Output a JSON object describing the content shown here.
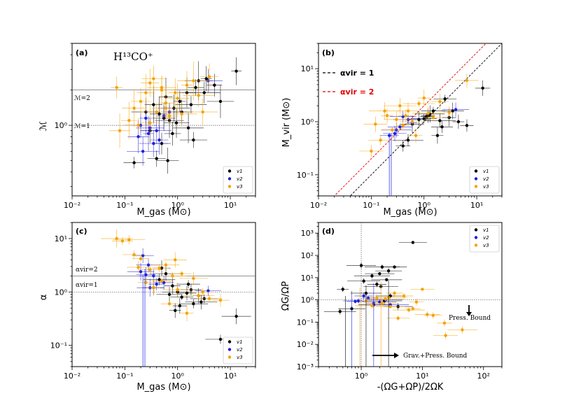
{
  "figure": {
    "species_label": "H¹³CO⁺"
  },
  "colors": {
    "v1": "#000000",
    "v2": "#1f1fe0",
    "v3": "#f5a200",
    "red": "#e00000",
    "guide": "#555555"
  },
  "chart_data": [
    {
      "id": "a",
      "type": "scatter",
      "panel_label": "(a)",
      "xlabel": "M_gas (M⊙)",
      "ylabel": "ℳ",
      "xscale": "log",
      "yscale": "log",
      "xlim": [
        0.01,
        30
      ],
      "ylim": [
        0.25,
        5
      ],
      "xticks": [
        {
          "v": 0.01,
          "label": "10⁻²"
        },
        {
          "v": 0.1,
          "label": "10⁻¹"
        },
        {
          "v": 1,
          "label": "10⁰"
        },
        {
          "v": 10,
          "label": "10¹"
        }
      ],
      "yticks": [
        {
          "v": 1,
          "label": "10⁰"
        }
      ],
      "hlines": [
        {
          "y": 2,
          "label": "ℳ=2"
        },
        {
          "y": 1,
          "label": "ℳ=1"
        }
      ],
      "legend": [
        "v1",
        "v2",
        "v3"
      ],
      "series": [
        {
          "name": "v1",
          "x": [
            13,
            5,
            3.5,
            1.5,
            2.2,
            1.1,
            0.85,
            0.6,
            0.45,
            1.8,
            2.5,
            0.7,
            1.2,
            0.35,
            0.55,
            0.95,
            3.2,
            6.5,
            0.25,
            1.6,
            0.8,
            2.0,
            0.5,
            0.65,
            0.15,
            0.4,
            0.3
          ],
          "y": [
            2.9,
            2.2,
            2.5,
            1.9,
            2.1,
            1.6,
            1.4,
            1.75,
            1.25,
            1.5,
            2.4,
            1.1,
            1.3,
            1.5,
            1.15,
            1.05,
            1.9,
            1.6,
            1.3,
            0.95,
            0.85,
            0.75,
            0.7,
            0.5,
            0.48,
            0.52,
            0.9
          ]
        },
        {
          "name": "v2",
          "x": [
            0.2,
            0.3,
            0.25,
            0.18,
            0.4,
            0.55,
            0.35,
            0.7,
            0.22,
            0.45,
            3.8,
            0.28
          ],
          "y": [
            1.0,
            0.95,
            1.15,
            0.8,
            0.9,
            1.2,
            0.7,
            1.3,
            0.6,
            0.75,
            2.4,
            0.85
          ]
        },
        {
          "name": "v3",
          "x": [
            0.07,
            0.15,
            0.2,
            0.3,
            0.5,
            0.9,
            1.5,
            2.5,
            0.12,
            0.08,
            0.4,
            0.6,
            1.0,
            2.0,
            1.2,
            0.25,
            0.35,
            3.0,
            4.0,
            0.18,
            0.7,
            0.5,
            0.3,
            0.6
          ],
          "y": [
            2.1,
            1.4,
            1.6,
            2.3,
            2.0,
            1.9,
            2.2,
            1.8,
            1.1,
            0.9,
            1.3,
            1.55,
            1.7,
            2.4,
            1.25,
            1.9,
            2.5,
            1.3,
            2.6,
            1.0,
            1.2,
            2.1,
            1.05,
            1.4
          ]
        }
      ]
    },
    {
      "id": "b",
      "type": "scatter",
      "panel_label": "(b)",
      "xlabel": "M_gas (M⊙)",
      "ylabel": "M_vir (M⊙)",
      "xscale": "log",
      "yscale": "log",
      "xlim": [
        0.01,
        30
      ],
      "ylim": [
        0.04,
        30
      ],
      "xticks": [
        {
          "v": 0.01,
          "label": "10⁻²"
        },
        {
          "v": 0.1,
          "label": "10⁻¹"
        },
        {
          "v": 1,
          "label": "10⁰"
        },
        {
          "v": 10,
          "label": "10¹"
        }
      ],
      "yticks": [
        {
          "v": 0.1,
          "label": "10⁻¹"
        },
        {
          "v": 1,
          "label": "10⁰"
        },
        {
          "v": 10,
          "label": "10¹"
        }
      ],
      "diagonals": [
        {
          "alpha": 1,
          "label": "αvir = 1",
          "color": "#000000"
        },
        {
          "alpha": 2,
          "label": "αvir = 2",
          "color": "#e00000"
        }
      ],
      "legend": [
        "v1",
        "v2",
        "v3"
      ],
      "series": [
        {
          "name": "v1",
          "x": [
            13,
            2.5,
            1.5,
            1.2,
            0.8,
            2.0,
            3.0,
            1.8,
            0.5,
            0.6,
            2.2,
            1.0,
            4.5,
            6.5,
            0.4,
            1.1,
            3.5,
            1.3
          ],
          "y": [
            4.3,
            2.7,
            1.6,
            1.3,
            1.1,
            1.05,
            1.2,
            0.55,
            0.45,
            0.9,
            0.8,
            1.15,
            1.0,
            0.85,
            0.35,
            1.25,
            1.6,
            1.4
          ]
        },
        {
          "name": "v2",
          "x": [
            0.22,
            0.28,
            0.35,
            0.5,
            0.6,
            4.0,
            0.4,
            0.3
          ],
          "y": [
            0.55,
            0.6,
            0.8,
            1.1,
            0.95,
            1.7,
            1.25,
            0.7
          ]
        },
        {
          "name": "v3",
          "x": [
            0.1,
            0.12,
            0.15,
            0.2,
            0.25,
            0.35,
            0.5,
            0.8,
            1.0,
            1.5,
            3.0,
            0.3,
            0.45,
            0.7,
            2.0,
            6.5,
            0.18,
            0.6,
            1.2,
            0.4
          ],
          "y": [
            0.28,
            0.9,
            0.45,
            1.3,
            0.7,
            2.0,
            1.6,
            2.2,
            2.8,
            1.2,
            1.5,
            1.1,
            1.3,
            0.55,
            2.4,
            6.0,
            1.6,
            1.0,
            1.45,
            0.85
          ]
        }
      ]
    },
    {
      "id": "c",
      "type": "scatter",
      "panel_label": "(c)",
      "xlabel": "M_gas (M⊙)",
      "ylabel": "α",
      "xscale": "log",
      "yscale": "log",
      "xlim": [
        0.01,
        30
      ],
      "ylim": [
        0.04,
        20
      ],
      "xticks": [
        {
          "v": 0.01,
          "label": "10⁻²"
        },
        {
          "v": 0.1,
          "label": "10⁻¹"
        },
        {
          "v": 1,
          "label": "10⁰"
        },
        {
          "v": 10,
          "label": "10¹"
        }
      ],
      "yticks": [
        {
          "v": 0.1,
          "label": "10⁻¹"
        },
        {
          "v": 1,
          "label": "10⁰"
        },
        {
          "v": 10,
          "label": "10¹"
        }
      ],
      "hlines": [
        {
          "y": 2,
          "label": "αvir=2"
        },
        {
          "y": 1,
          "label": "αvir=1"
        }
      ],
      "legend": [
        "v1",
        "v2",
        "v3"
      ],
      "series": [
        {
          "name": "v1",
          "x": [
            13,
            6.5,
            3.2,
            2.5,
            1.8,
            1.5,
            1.2,
            1.0,
            0.8,
            0.6,
            0.5,
            2.0,
            1.1,
            0.7,
            0.9,
            1.6,
            0.45,
            2.8,
            0.35
          ],
          "y": [
            0.35,
            0.13,
            0.75,
            0.85,
            1.1,
            0.95,
            0.8,
            1.0,
            1.3,
            2.2,
            2.8,
            0.6,
            0.55,
            0.9,
            0.45,
            1.4,
            1.7,
            0.65,
            1.2
          ]
        },
        {
          "name": "v2",
          "x": [
            0.22,
            0.25,
            0.3,
            0.4,
            0.55,
            0.2,
            0.35,
            0.28,
            3.8
          ],
          "y": [
            4.8,
            2.1,
            1.2,
            1.4,
            1.5,
            2.4,
            2.0,
            3.2,
            1.05
          ]
        },
        {
          "name": "v3",
          "x": [
            0.07,
            0.09,
            0.12,
            0.15,
            0.2,
            0.3,
            0.45,
            0.6,
            0.9,
            1.2,
            2.0,
            3.0,
            6.5,
            0.25,
            0.5,
            0.8,
            1.5,
            0.18,
            0.35,
            4.0,
            0.7,
            1.0,
            2.5
          ],
          "y": [
            10.0,
            9.0,
            9.5,
            5.0,
            4.2,
            2.6,
            2.8,
            3.2,
            4.0,
            2.2,
            1.8,
            1.0,
            0.7,
            1.5,
            1.6,
            2.0,
            0.4,
            2.9,
            1.2,
            0.75,
            0.6,
            1.1,
            0.85
          ]
        }
      ]
    },
    {
      "id": "d",
      "type": "scatter",
      "panel_label": "(d)",
      "xlabel": "-(ΩG+ΩP)/2ΩK",
      "ylabel": "ΩG/ΩP",
      "xscale": "log",
      "yscale": "log",
      "xlim": [
        0.2,
        200
      ],
      "ylim": [
        0.001,
        3000
      ],
      "xticks": [
        {
          "v": 1,
          "label": "10⁰"
        },
        {
          "v": 10,
          "label": "10¹"
        },
        {
          "v": 100,
          "label": "10²"
        }
      ],
      "yticks": [
        {
          "v": 0.001,
          "label": "10⁻³"
        },
        {
          "v": 0.01,
          "label": "10⁻²"
        },
        {
          "v": 0.1,
          "label": "10⁻¹"
        },
        {
          "v": 1,
          "label": "10⁰"
        },
        {
          "v": 10,
          "label": "10¹"
        },
        {
          "v": 100,
          "label": "10²"
        },
        {
          "v": 1000,
          "label": "10³"
        }
      ],
      "vline_x": 1,
      "hline_y": 1,
      "arrows": [
        {
          "label": "Press. Bound"
        },
        {
          "label": "Grav.+Press. Bound"
        }
      ],
      "legend": [
        "v1",
        "v2",
        "v3"
      ],
      "series": [
        {
          "name": "v1",
          "x": [
            7,
            2.2,
            2.8,
            1.0,
            3.5,
            2.0,
            1.5,
            2.6,
            1.8,
            0.5,
            1.2,
            3.0,
            2.4,
            1.6,
            0.7,
            4.0,
            0.45,
            2.1,
            1.1
          ],
          "y": [
            380,
            30,
            20,
            35,
            30,
            15,
            12,
            8,
            5,
            3,
            2,
            1.5,
            0.9,
            0.6,
            0.4,
            0.5,
            0.3,
            4,
            7
          ]
        },
        {
          "name": "v2",
          "x": [
            0.9,
            1.3,
            1.6,
            2.0,
            3.0,
            2.5,
            1.1,
            0.8
          ],
          "y": [
            0.9,
            1.2,
            0.7,
            0.8,
            0.6,
            1.0,
            1.5,
            0.85
          ]
        },
        {
          "name": "v3",
          "x": [
            24,
            45,
            23,
            15,
            12,
            3.0,
            5.0,
            8.0,
            2.5,
            6.0,
            4.0,
            1.8,
            1.2,
            2.2,
            3.5,
            10,
            1.5,
            7.0,
            2.8
          ],
          "y": [
            0.025,
            0.045,
            0.09,
            0.2,
            0.22,
            0.5,
            1.5,
            0.8,
            1.1,
            0.35,
            0.15,
            1.2,
            0.9,
            0.7,
            2.0,
            3.0,
            0.55,
            0.4,
            1.3
          ]
        }
      ]
    }
  ]
}
